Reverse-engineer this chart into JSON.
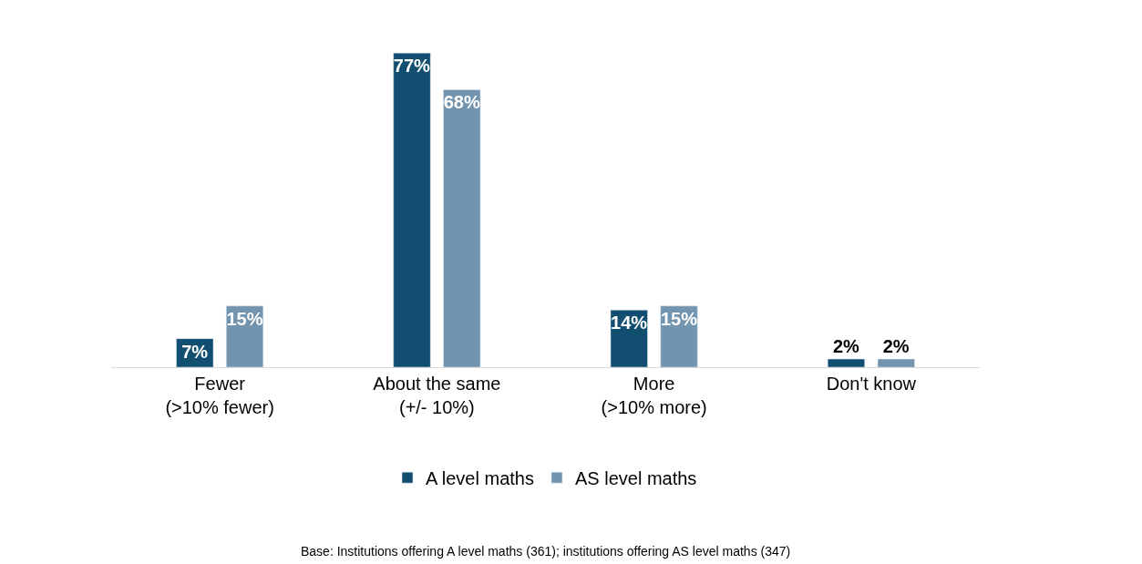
{
  "chart_data": {
    "type": "bar",
    "categories": [
      "Fewer\n(>10% fewer)",
      "About the same\n(+/- 10%)",
      "More\n(>10% more)",
      "Don't know"
    ],
    "series": [
      {
        "name": "A level maths",
        "color": "#124e70",
        "values": [
          7,
          77,
          14,
          2
        ],
        "value_labels": [
          "7%",
          "77%",
          "14%",
          "2%"
        ]
      },
      {
        "name": "AS level maths",
        "color": "#7294ae",
        "values": [
          15,
          68,
          15,
          2
        ],
        "value_labels": [
          "15%",
          "68%",
          "15%",
          "2%"
        ]
      }
    ],
    "legend": "bottom",
    "annotations": [
      "Base: Institutions offering A level maths (361); institutions offering AS level maths (347)"
    ]
  }
}
